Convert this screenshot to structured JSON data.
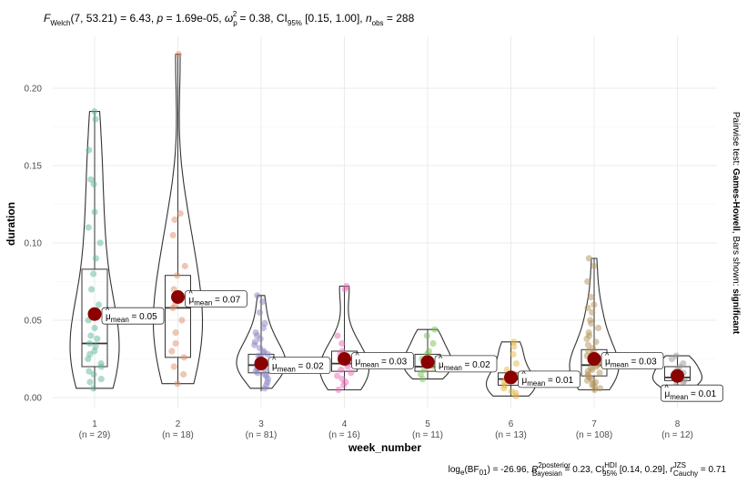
{
  "chart_data": {
    "type": "violin-box",
    "xlabel": "week_number",
    "ylabel": "duration",
    "ylim": [
      0,
      0.225
    ],
    "yticks": [
      0.0,
      0.05,
      0.1,
      0.15,
      0.2
    ],
    "ytick_labels": [
      "0.00",
      "0.05",
      "0.10",
      "0.15",
      "0.20"
    ],
    "grid": true,
    "subtitle_parts": {
      "f_welch": "F",
      "f_welch_sub": "Welch",
      "f_args": "(7, 53.21) = 6.43, ",
      "p_label": "p",
      "p_value": " = 1.69e-05, ",
      "omega": "ω",
      "omega_sub": "p",
      "omega_sup": "2",
      "omega_value": " = 0.38, CI",
      "ci_sub": "95%",
      "ci_value": " [0.15, 1.00], ",
      "n_label": "n",
      "n_sub": "obs",
      "n_value": " = 288"
    },
    "caption_parts": {
      "bf": "log",
      "bf_sub": "e",
      "bf_paren": "(BF",
      "bf_paren_sub": "01",
      "bf_value": ") = -26.96, ",
      "r2": "R",
      "r2_sup": "2",
      "r2_posterior": "posterior",
      "r2_sub": "Bayesian",
      "r2_value": " = 0.23, CI",
      "ci_sup": "HDI",
      "ci_sub": "95%",
      "ci_value": " [0.14, 0.29], ",
      "r_label": "r",
      "r_sup": "JZS",
      "r_sub": "Cauchy",
      "r_value": " = 0.71"
    },
    "side_text": {
      "prefix": "Pairwise test: ",
      "test": "Games-Howell",
      "middle": ", Bars shown: ",
      "shown": "significant"
    },
    "mean_label_prefix": "μ",
    "mean_label_sub": "mean",
    "categories": [
      {
        "x": "1",
        "n_label": "(n = 29)",
        "color": "#5fb89b",
        "mean": 0.054,
        "mean_label": " = 0.05",
        "box": {
          "q1": 0.02,
          "median": 0.035,
          "q3": 0.083,
          "min": 0.005,
          "max": 0.185
        },
        "points": [
          0.185,
          0.18,
          0.16,
          0.141,
          0.138,
          0.12,
          0.11,
          0.1,
          0.09,
          0.08,
          0.07,
          0.06,
          0.055,
          0.05,
          0.045,
          0.04,
          0.038,
          0.035,
          0.033,
          0.03,
          0.028,
          0.025,
          0.022,
          0.02,
          0.017,
          0.015,
          0.012,
          0.01,
          0.006
        ]
      },
      {
        "x": "2",
        "n_label": "(n = 18)",
        "color": "#e0906a",
        "mean": 0.065,
        "mean_label": " = 0.07",
        "box": {
          "q1": 0.026,
          "median": 0.058,
          "q3": 0.079,
          "min": 0.009,
          "max": 0.222
        },
        "points": [
          0.222,
          0.119,
          0.115,
          0.105,
          0.085,
          0.079,
          0.07,
          0.065,
          0.06,
          0.058,
          0.05,
          0.042,
          0.035,
          0.03,
          0.026,
          0.02,
          0.015,
          0.009
        ]
      },
      {
        "x": "3",
        "n_label": "(n = 81)",
        "color": "#8a84bf",
        "mean": 0.022,
        "mean_label": " = 0.02",
        "box": {
          "q1": 0.016,
          "median": 0.021,
          "q3": 0.028,
          "min": 0.004,
          "max": 0.066
        },
        "points": [
          0.066,
          0.062,
          0.055,
          0.048,
          0.045,
          0.042,
          0.04,
          0.038,
          0.036,
          0.034,
          0.032,
          0.03,
          0.029,
          0.028,
          0.027,
          0.026,
          0.025,
          0.024,
          0.023,
          0.022,
          0.021,
          0.02,
          0.019,
          0.018,
          0.017,
          0.016,
          0.015,
          0.014,
          0.012,
          0.01,
          0.008,
          0.006
        ]
      },
      {
        "x": "4",
        "n_label": "(n = 16)",
        "color": "#e86bb8",
        "mean": 0.025,
        "mean_label": " = 0.03",
        "box": {
          "q1": 0.017,
          "median": 0.022,
          "q3": 0.03,
          "min": 0.005,
          "max": 0.072
        },
        "points": [
          0.072,
          0.07,
          0.04,
          0.035,
          0.03,
          0.028,
          0.025,
          0.022,
          0.02,
          0.018,
          0.016,
          0.014,
          0.012,
          0.01,
          0.008,
          0.005
        ]
      },
      {
        "x": "5",
        "n_label": "(n = 11)",
        "color": "#7bbf55",
        "mean": 0.023,
        "mean_label": " = 0.02",
        "box": {
          "q1": 0.017,
          "median": 0.02,
          "q3": 0.028,
          "min": 0.012,
          "max": 0.044
        },
        "points": [
          0.044,
          0.04,
          0.035,
          0.03,
          0.028,
          0.025,
          0.022,
          0.02,
          0.018,
          0.015,
          0.012
        ]
      },
      {
        "x": "6",
        "n_label": "(n = 13)",
        "color": "#e5b544",
        "mean": 0.013,
        "mean_label": " = 0.01",
        "box": {
          "q1": 0.008,
          "median": 0.012,
          "q3": 0.016,
          "min": 0.001,
          "max": 0.036
        },
        "points": [
          0.036,
          0.033,
          0.028,
          0.022,
          0.018,
          0.015,
          0.012,
          0.01,
          0.008,
          0.006,
          0.004,
          0.003,
          0.001
        ]
      },
      {
        "x": "7",
        "n_label": "(n = 108)",
        "color": "#b3935a",
        "mean": 0.025,
        "mean_label": " = 0.03",
        "box": {
          "q1": 0.014,
          "median": 0.021,
          "q3": 0.031,
          "min": 0.004,
          "max": 0.09
        },
        "points": [
          0.09,
          0.085,
          0.075,
          0.065,
          0.06,
          0.058,
          0.055,
          0.05,
          0.048,
          0.045,
          0.042,
          0.04,
          0.038,
          0.036,
          0.034,
          0.032,
          0.03,
          0.029,
          0.028,
          0.027,
          0.026,
          0.025,
          0.024,
          0.023,
          0.022,
          0.021,
          0.02,
          0.019,
          0.018,
          0.017,
          0.016,
          0.015,
          0.014,
          0.013,
          0.012,
          0.011,
          0.01,
          0.009,
          0.008,
          0.007,
          0.006,
          0.005
        ]
      },
      {
        "x": "8",
        "n_label": "(n = 12)",
        "color": "#9a9a9a",
        "mean": 0.014,
        "mean_label": " = 0.01",
        "box": {
          "q1": 0.011,
          "median": 0.013,
          "q3": 0.02,
          "min": 0.003,
          "max": 0.027
        },
        "points": [
          0.027,
          0.025,
          0.022,
          0.02,
          0.018,
          0.016,
          0.014,
          0.012,
          0.011,
          0.01,
          0.008,
          0.005
        ]
      }
    ],
    "mean_color": "#8b0000"
  }
}
